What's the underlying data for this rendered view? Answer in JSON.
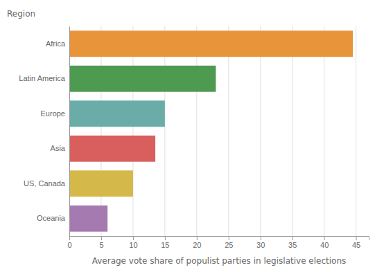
{
  "chart_data": {
    "type": "bar",
    "orientation": "horizontal",
    "categories": [
      "Oceania",
      "US, Canada",
      "Asia",
      "Europe",
      "Latin America",
      "Africa"
    ],
    "values": [
      6,
      10,
      13.5,
      15,
      23,
      44.5
    ],
    "colors": [
      "#a57ab0",
      "#d4b84a",
      "#d95f5f",
      "#6aada8",
      "#4e9a51",
      "#e8943a"
    ],
    "xlabel": "Average vote share of populist parties in legislative elections",
    "ylabel": "Region",
    "xlim": [
      0,
      47
    ],
    "xticks": [
      0,
      5,
      10,
      15,
      20,
      25,
      30,
      35,
      40,
      45
    ],
    "grid": true
  }
}
